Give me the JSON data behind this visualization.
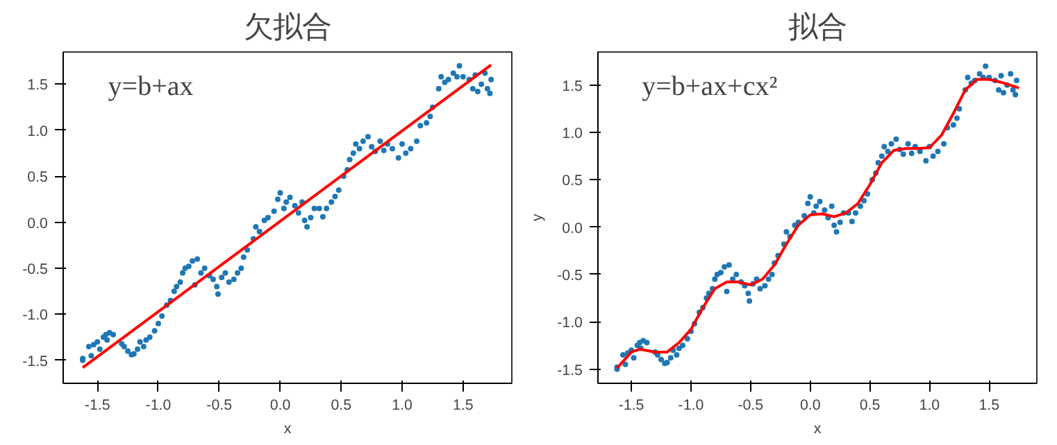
{
  "chart_data": [
    {
      "type": "scatter",
      "title": "欠拟合",
      "xlabel": "x",
      "annotations": [
        "y=b+ax"
      ],
      "xlim": [
        -1.78,
        1.9
      ],
      "ylim": [
        -1.75,
        1.85
      ],
      "xticks": [
        {
          "value": -1.5,
          "label": "-1.5"
        },
        {
          "value": -1,
          "label": "-1.0"
        },
        {
          "value": -0.5,
          "label": "-0.5"
        },
        {
          "value": 0,
          "label": "0.0"
        },
        {
          "value": 0.5,
          "label": "0.5"
        },
        {
          "value": 1,
          "label": "1.0"
        },
        {
          "value": 1.5,
          "label": "1.5"
        }
      ],
      "yticks": [
        {
          "value": -1.5,
          "label": "-1.5"
        },
        {
          "value": -1,
          "label": "-1.0"
        },
        {
          "value": -0.5,
          "label": "-0.5"
        },
        {
          "value": 0,
          "label": "0.0"
        },
        {
          "value": 0.5,
          "label": "0.5"
        },
        {
          "value": 1,
          "label": "1.0"
        },
        {
          "value": 1.5,
          "label": "1.5"
        }
      ],
      "grid": false,
      "series": [
        {
          "color": "#1f77b4",
          "marker": "circle",
          "x": [
            -1.62,
            -1.62,
            -1.57,
            -1.55,
            -1.53,
            -1.5,
            -1.48,
            -1.45,
            -1.43,
            -1.42,
            -1.4,
            -1.37,
            -1.3,
            -1.28,
            -1.25,
            -1.22,
            -1.2,
            -1.17,
            -1.15,
            -1.12,
            -1.1,
            -1.07,
            -1.03,
            -1.0,
            -0.97,
            -0.93,
            -0.9,
            -0.87,
            -0.85,
            -0.82,
            -0.8,
            -0.78,
            -0.75,
            -0.72,
            -0.7,
            -0.68,
            -0.65,
            -0.62,
            -0.58,
            -0.55,
            -0.52,
            -0.51,
            -0.48,
            -0.45,
            -0.42,
            -0.38,
            -0.35,
            -0.32,
            -0.3,
            -0.27,
            -0.22,
            -0.2,
            -0.17,
            -0.13,
            -0.1,
            -0.05,
            -0.02,
            0.0,
            0.03,
            0.05,
            0.08,
            0.12,
            0.15,
            0.18,
            0.2,
            0.22,
            0.25,
            0.28,
            0.32,
            0.35,
            0.38,
            0.42,
            0.45,
            0.48,
            0.52,
            0.55,
            0.57,
            0.6,
            0.62,
            0.65,
            0.68,
            0.72,
            0.75,
            0.78,
            0.82,
            0.85,
            0.88,
            0.92,
            0.97,
            1.0,
            1.03,
            1.07,
            1.12,
            1.15,
            1.2,
            1.23,
            1.25,
            1.3,
            1.32,
            1.35,
            1.38,
            1.42,
            1.45,
            1.47,
            1.5,
            1.55,
            1.58,
            1.6,
            1.62,
            1.65,
            1.68,
            1.7,
            1.72,
            1.73
          ],
          "values": [
            -1.5,
            -1.48,
            -1.35,
            -1.45,
            -1.33,
            -1.3,
            -1.38,
            -1.25,
            -1.22,
            -1.28,
            -1.2,
            -1.22,
            -1.32,
            -1.35,
            -1.4,
            -1.44,
            -1.43,
            -1.38,
            -1.3,
            -1.35,
            -1.28,
            -1.25,
            -1.18,
            -1.1,
            -1.02,
            -0.9,
            -0.85,
            -0.75,
            -0.7,
            -0.65,
            -0.55,
            -0.5,
            -0.48,
            -0.42,
            -0.68,
            -0.4,
            -0.55,
            -0.5,
            -0.58,
            -0.62,
            -0.7,
            -0.78,
            -0.6,
            -0.55,
            -0.65,
            -0.62,
            -0.55,
            -0.5,
            -0.38,
            -0.3,
            -0.18,
            -0.05,
            -0.1,
            0.02,
            0.05,
            0.12,
            0.25,
            0.32,
            0.15,
            0.22,
            0.27,
            0.18,
            0.1,
            0.22,
            0.02,
            -0.05,
            0.05,
            0.15,
            0.15,
            0.06,
            0.15,
            0.22,
            0.28,
            0.35,
            0.5,
            0.57,
            0.68,
            0.75,
            0.85,
            0.8,
            0.88,
            0.93,
            0.82,
            0.77,
            0.88,
            0.78,
            0.85,
            0.8,
            0.7,
            0.85,
            0.75,
            0.8,
            0.88,
            1.05,
            1.08,
            1.15,
            1.25,
            1.45,
            1.58,
            1.52,
            1.55,
            1.62,
            1.58,
            1.7,
            1.58,
            1.55,
            1.45,
            1.6,
            1.42,
            1.5,
            1.62,
            1.45,
            1.4,
            1.55
          ]
        },
        {
          "type": "line",
          "color": "#ff0000",
          "x": [
            -1.62,
            1.73
          ],
          "values": [
            -1.58,
            1.71
          ]
        }
      ]
    },
    {
      "type": "scatter",
      "title": "拟合",
      "xlabel": "x",
      "ylabel": "y",
      "annotations": [
        "y=b+ax+cx²"
      ],
      "xlim": [
        -1.78,
        1.9
      ],
      "ylim": [
        -1.65,
        1.85
      ],
      "xticks": [
        {
          "value": -1.5,
          "label": "-1.5"
        },
        {
          "value": -1,
          "label": "-1.0"
        },
        {
          "value": -0.5,
          "label": "-0.5"
        },
        {
          "value": 0,
          "label": "0.0"
        },
        {
          "value": 0.5,
          "label": "0.5"
        },
        {
          "value": 1,
          "label": "1.0"
        },
        {
          "value": 1.5,
          "label": "1.5"
        }
      ],
      "yticks": [
        {
          "value": -1.5,
          "label": "-1.5"
        },
        {
          "value": -1,
          "label": "-1.0"
        },
        {
          "value": -0.5,
          "label": "-0.5"
        },
        {
          "value": 0,
          "label": "0.0"
        },
        {
          "value": 0.5,
          "label": "0.5"
        },
        {
          "value": 1,
          "label": "1.0"
        },
        {
          "value": 1.5,
          "label": "1.5"
        }
      ],
      "grid": false,
      "series": [
        {
          "color": "#1f77b4",
          "marker": "circle",
          "x": [
            -1.62,
            -1.62,
            -1.57,
            -1.55,
            -1.53,
            -1.5,
            -1.48,
            -1.45,
            -1.43,
            -1.42,
            -1.4,
            -1.37,
            -1.3,
            -1.28,
            -1.25,
            -1.22,
            -1.2,
            -1.17,
            -1.15,
            -1.12,
            -1.1,
            -1.07,
            -1.03,
            -1.0,
            -0.97,
            -0.93,
            -0.9,
            -0.87,
            -0.85,
            -0.82,
            -0.8,
            -0.78,
            -0.75,
            -0.72,
            -0.7,
            -0.68,
            -0.65,
            -0.62,
            -0.58,
            -0.55,
            -0.52,
            -0.51,
            -0.48,
            -0.45,
            -0.42,
            -0.38,
            -0.35,
            -0.32,
            -0.3,
            -0.27,
            -0.22,
            -0.2,
            -0.17,
            -0.13,
            -0.1,
            -0.05,
            -0.02,
            0.0,
            0.03,
            0.05,
            0.08,
            0.12,
            0.15,
            0.18,
            0.2,
            0.22,
            0.25,
            0.28,
            0.32,
            0.35,
            0.38,
            0.42,
            0.45,
            0.48,
            0.52,
            0.55,
            0.57,
            0.6,
            0.62,
            0.65,
            0.68,
            0.72,
            0.75,
            0.78,
            0.82,
            0.85,
            0.88,
            0.92,
            0.97,
            1.0,
            1.03,
            1.07,
            1.12,
            1.15,
            1.2,
            1.23,
            1.25,
            1.3,
            1.32,
            1.35,
            1.38,
            1.42,
            1.45,
            1.47,
            1.5,
            1.55,
            1.58,
            1.6,
            1.62,
            1.65,
            1.68,
            1.7,
            1.72,
            1.73
          ],
          "values": [
            -1.5,
            -1.48,
            -1.35,
            -1.45,
            -1.33,
            -1.3,
            -1.38,
            -1.25,
            -1.22,
            -1.28,
            -1.2,
            -1.22,
            -1.32,
            -1.35,
            -1.4,
            -1.44,
            -1.43,
            -1.38,
            -1.3,
            -1.35,
            -1.28,
            -1.25,
            -1.18,
            -1.1,
            -1.02,
            -0.9,
            -0.85,
            -0.75,
            -0.7,
            -0.65,
            -0.55,
            -0.5,
            -0.48,
            -0.42,
            -0.68,
            -0.4,
            -0.55,
            -0.5,
            -0.58,
            -0.62,
            -0.7,
            -0.78,
            -0.6,
            -0.55,
            -0.65,
            -0.62,
            -0.55,
            -0.5,
            -0.38,
            -0.3,
            -0.18,
            -0.05,
            -0.1,
            0.02,
            0.05,
            0.12,
            0.25,
            0.32,
            0.15,
            0.22,
            0.27,
            0.18,
            0.1,
            0.22,
            0.02,
            -0.05,
            0.05,
            0.15,
            0.15,
            0.06,
            0.15,
            0.22,
            0.28,
            0.35,
            0.5,
            0.57,
            0.68,
            0.75,
            0.85,
            0.8,
            0.88,
            0.93,
            0.82,
            0.77,
            0.88,
            0.78,
            0.85,
            0.8,
            0.7,
            0.85,
            0.75,
            0.8,
            0.88,
            1.05,
            1.08,
            1.15,
            1.25,
            1.45,
            1.58,
            1.52,
            1.55,
            1.62,
            1.58,
            1.7,
            1.58,
            1.55,
            1.45,
            1.6,
            1.42,
            1.5,
            1.62,
            1.45,
            1.4,
            1.55
          ]
        },
        {
          "type": "line",
          "color": "#ff0000",
          "x": [
            -1.62,
            -1.5,
            -1.43,
            -1.3,
            -1.2,
            -1.1,
            -1.0,
            -0.9,
            -0.8,
            -0.7,
            -0.6,
            -0.5,
            -0.4,
            -0.3,
            -0.2,
            -0.1,
            0.0,
            0.1,
            0.2,
            0.3,
            0.4,
            0.5,
            0.6,
            0.7,
            0.8,
            0.9,
            1.0,
            1.1,
            1.2,
            1.3,
            1.4,
            1.5,
            1.6,
            1.75
          ],
          "values": [
            -1.49,
            -1.32,
            -1.29,
            -1.32,
            -1.32,
            -1.22,
            -1.08,
            -0.85,
            -0.65,
            -0.58,
            -0.58,
            -0.61,
            -0.55,
            -0.4,
            -0.18,
            0.02,
            0.13,
            0.14,
            0.11,
            0.15,
            0.25,
            0.45,
            0.68,
            0.81,
            0.83,
            0.83,
            0.84,
            0.97,
            1.2,
            1.45,
            1.56,
            1.56,
            1.53,
            1.47
          ]
        }
      ]
    }
  ]
}
